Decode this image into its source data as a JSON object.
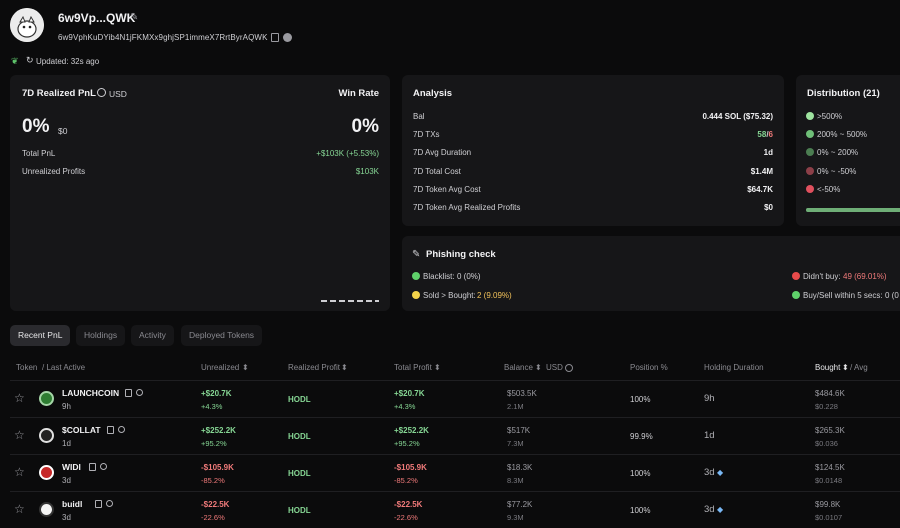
{
  "header": {
    "wallet_name": "6w9Vp...QWK",
    "address": "6w9VphKuDYib4N1jFKMXx9ghjSP1immeX7RrtByrAQWK",
    "updated": "Updated: 32s ago"
  },
  "pnl": {
    "title": "7D Realized PnL",
    "currency": "USD",
    "value": "0%",
    "value_usd": "$0",
    "winrate_label": "Win Rate",
    "winrate_value": "0%",
    "total_pnl_label": "Total PnL",
    "total_pnl_value": "+$103K (+5.53%)",
    "unrealized_label": "Unrealized Profits",
    "unrealized_value": "$103K"
  },
  "analysis": {
    "title": "Analysis",
    "rows": [
      {
        "label": "Bal",
        "value": "0.444 SOL ($75.32)"
      },
      {
        "label": "7D TXs",
        "value_green": "58",
        "sep": "/",
        "value_red": "6"
      },
      {
        "label": "7D Avg Duration",
        "value": "1d"
      },
      {
        "label": "7D Total Cost",
        "value": "$1.4M"
      },
      {
        "label": "7D Token Avg Cost",
        "value": "$64.7K"
      },
      {
        "label": "7D Token Avg Realized Profits",
        "value": "$0"
      }
    ]
  },
  "distribution": {
    "title": "Distribution (21)",
    "items": [
      {
        "label": ">500%",
        "color": "#9ee39f"
      },
      {
        "label": "200% ~ 500%",
        "color": "#6fbf78"
      },
      {
        "label": "0% ~ 200%",
        "color": "#4b7d51"
      },
      {
        "label": "0% ~ -50%",
        "color": "#8c3f48"
      },
      {
        "label": "<-50%",
        "color": "#e0505e"
      }
    ],
    "bar_fraction": 1.0
  },
  "phishing": {
    "title": "Phishing check",
    "blacklist_label": "Blacklist:",
    "blacklist_value": "0 (0%)",
    "sold_label": "Sold > Bought:",
    "sold_value": "2 (9.09%)",
    "didnt_buy_label": "Didn't buy:",
    "didnt_buy_value": "49 (69.01%)",
    "buysell_label": "Buy/Sell within 5 secs:",
    "buysell_value": "0 (0"
  },
  "tabs": [
    "Recent PnL",
    "Holdings",
    "Activity",
    "Deployed Tokens"
  ],
  "table": {
    "headers": {
      "token": "Token",
      "last_active": "/ Last Active",
      "unrealized": "Unrealized",
      "realized": "Realized Profit",
      "total": "Total Profit",
      "balance": "Balance",
      "balance_unit": "USD",
      "position": "Position %",
      "holding": "Holding Duration",
      "bought": "Bought",
      "avg": "/ Avg"
    },
    "rows": [
      {
        "name": "LAUNCHCOIN",
        "active": "9h",
        "unreal": "+$20.7K",
        "unreal_pct": "+4.3%",
        "realized": "HODL",
        "total": "+$20.7K",
        "total_pct": "+4.3%",
        "bal": "$503.5K",
        "bal_amt": "2.1M",
        "pos": "100%",
        "hold": "9h",
        "bought": "$484.6K",
        "avg": "$0.228",
        "positive": true,
        "diamond": false
      },
      {
        "name": "$COLLAT",
        "active": "1d",
        "unreal": "+$252.2K",
        "unreal_pct": "+95.2%",
        "realized": "HODL",
        "total": "+$252.2K",
        "total_pct": "+95.2%",
        "bal": "$517K",
        "bal_amt": "7.3M",
        "pos": "99.9%",
        "hold": "1d",
        "bought": "$265.3K",
        "avg": "$0.036",
        "positive": true,
        "diamond": false
      },
      {
        "name": "WIDI",
        "active": "3d",
        "unreal": "-$105.9K",
        "unreal_pct": "-85.2%",
        "realized": "HODL",
        "total": "-$105.9K",
        "total_pct": "-85.2%",
        "bal": "$18.3K",
        "bal_amt": "8.3M",
        "pos": "100%",
        "hold": "3d",
        "bought": "$124.5K",
        "avg": "$0.0148",
        "positive": false,
        "diamond": true
      },
      {
        "name": "buidl",
        "active": "3d",
        "unreal": "-$22.5K",
        "unreal_pct": "-22.6%",
        "realized": "HODL",
        "total": "-$22.5K",
        "total_pct": "-22.6%",
        "bal": "$77.2K",
        "bal_amt": "9.3M",
        "pos": "100%",
        "hold": "3d",
        "bought": "$99.8K",
        "avg": "$0.0107",
        "positive": false,
        "diamond": true
      }
    ]
  }
}
